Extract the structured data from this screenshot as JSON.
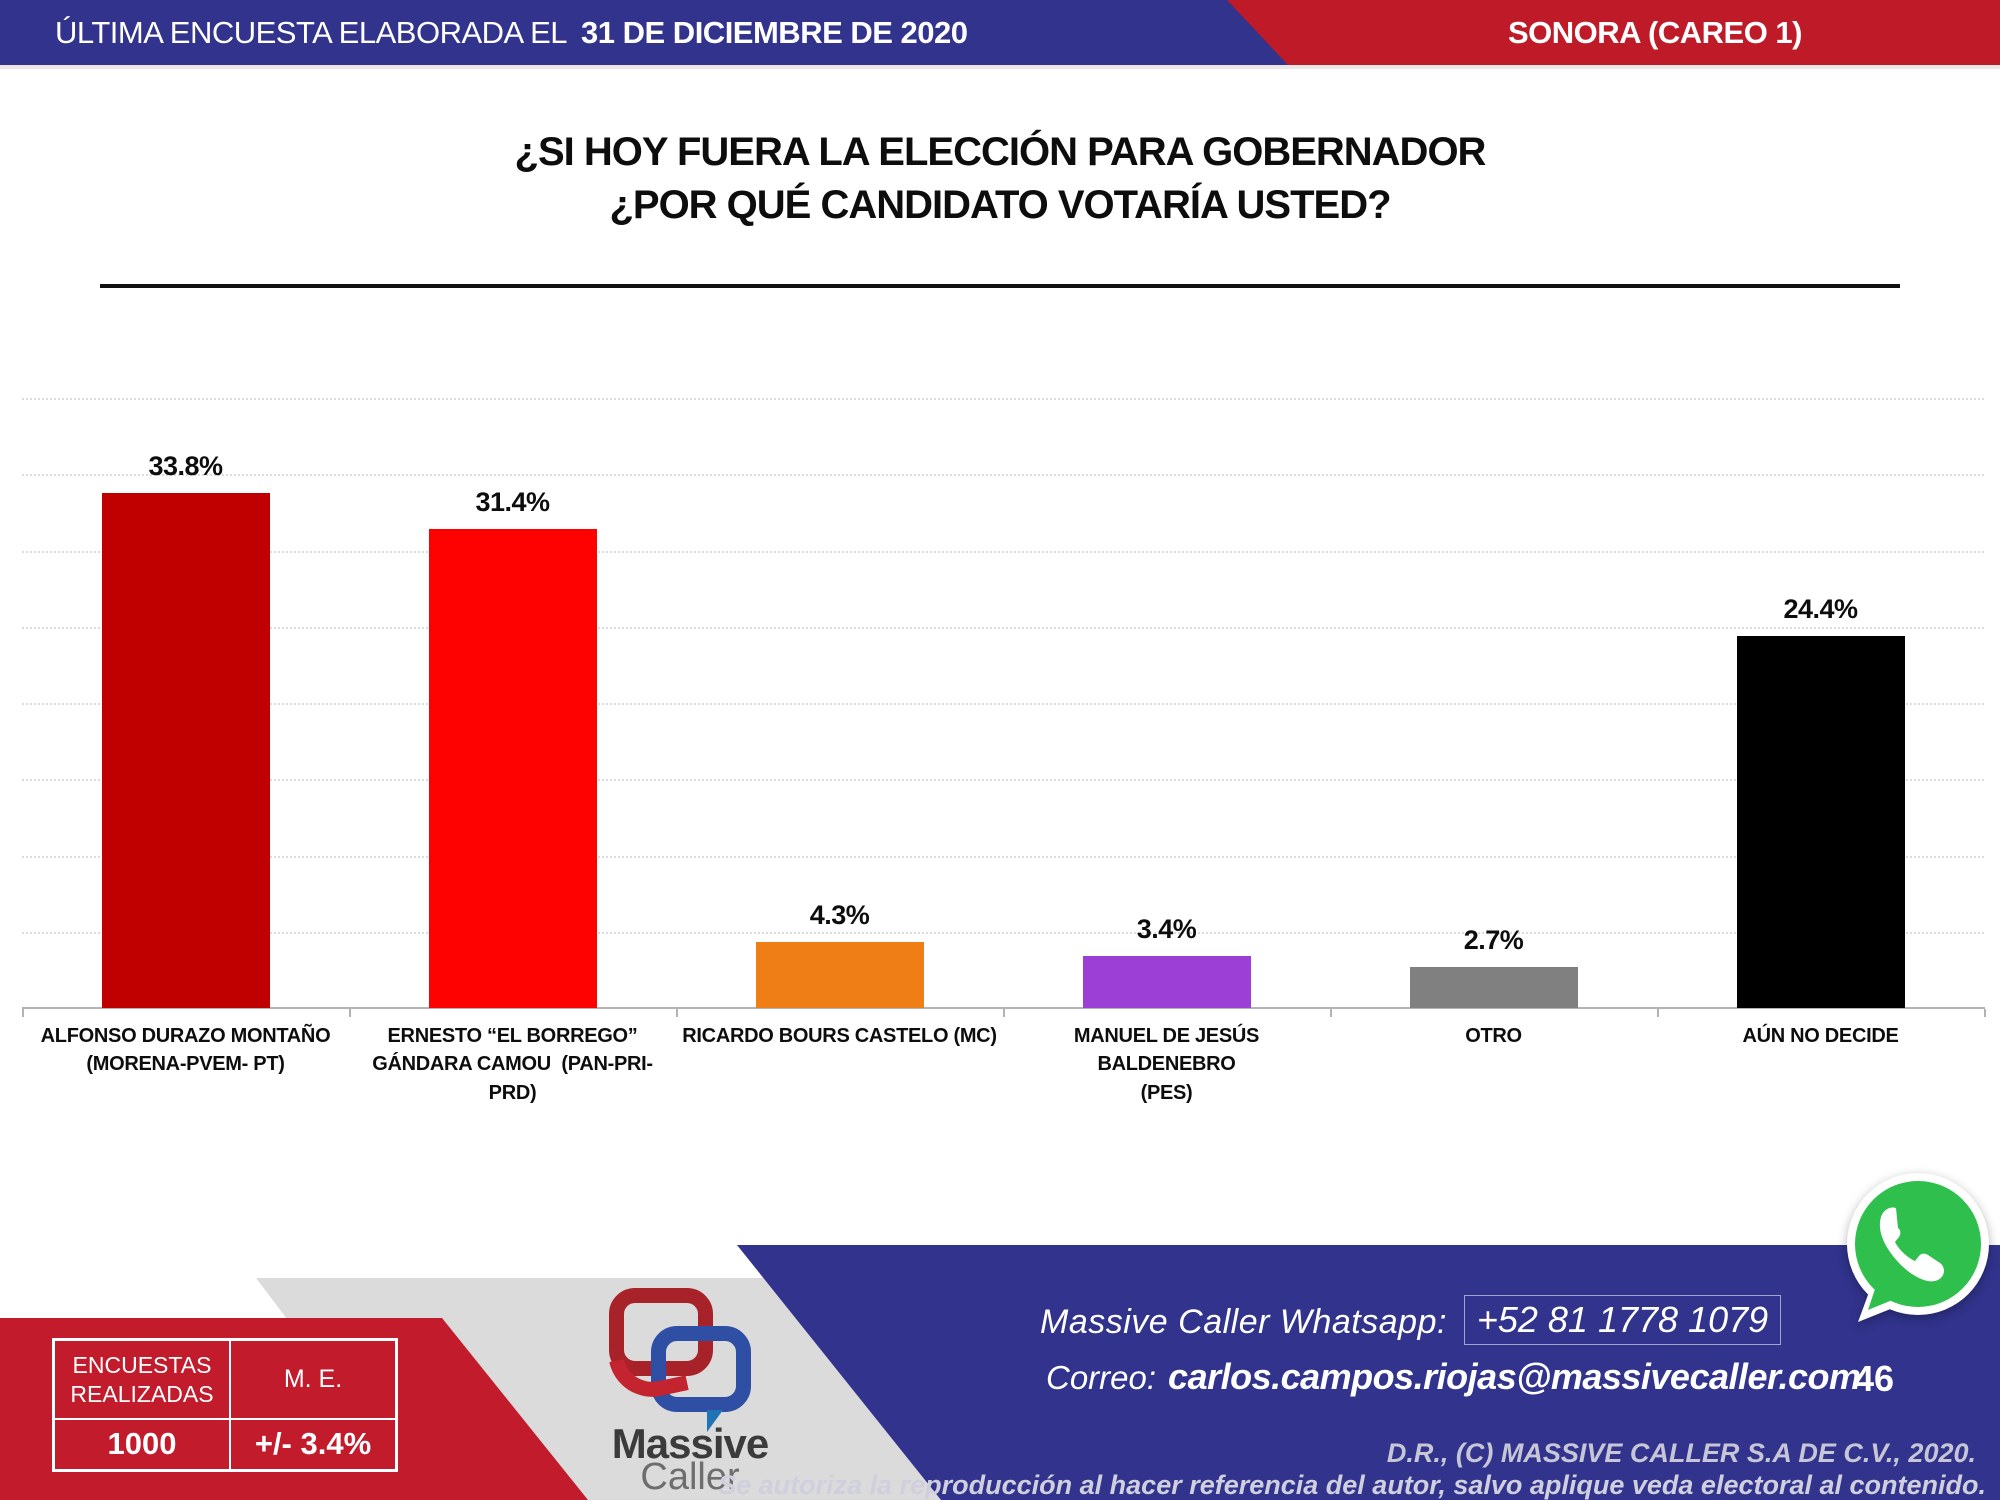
{
  "header": {
    "left_regular": "ÚLTIMA ENCUESTA ELABORADA EL",
    "left_bold": "31 DE DICIEMBRE DE 2020",
    "right": "SONORA (CAREO 1)",
    "blue_color": "#32338C",
    "red_color": "#BE1A28"
  },
  "title": {
    "lines": [
      "¿SI HOY FUERA LA ELECCIÓN PARA GOBERNADOR",
      "¿POR QUÉ CANDIDATO VOTARÍA USTED?"
    ]
  },
  "chart_data": {
    "type": "bar",
    "title": "¿SI HOY FUERA LA ELECCIÓN PARA GOBERNADOR ¿POR QUÉ CANDIDATO VOTARÍA USTED?",
    "xlabel": "",
    "ylabel": "",
    "categories": [
      [
        "ALFONSO DURAZO MONTAÑO",
        "(MORENA-PVEM- PT)"
      ],
      [
        "ERNESTO “EL BORREGO”",
        "GÁNDARA CAMOU  (PAN-PRI-",
        "PRD)"
      ],
      [
        "RICARDO BOURS CASTELO (MC)"
      ],
      [
        "MANUEL DE JESÚS BALDENEBRO",
        "(PES)"
      ],
      [
        "OTRO"
      ],
      [
        "AÚN NO DECIDE"
      ]
    ],
    "values": [
      33.8,
      31.4,
      4.3,
      3.4,
      2.7,
      24.4
    ],
    "value_labels": [
      "33.8%",
      "31.4%",
      "4.3%",
      "3.4%",
      "2.7%",
      "24.4%"
    ],
    "bar_colors": [
      "#C00000",
      "#FE0101",
      "#F07E16",
      "#9C3FD6",
      "#808080",
      "#000000"
    ],
    "ylim": [
      0,
      40
    ],
    "gridline_step_pct": 5,
    "grid": "horizontal dotted, light gray",
    "legend": "none"
  },
  "survey_info": {
    "col1_header": "ENCUESTAS\nREALIZADAS",
    "col2_header": "M. E.",
    "col1_value": "1000",
    "col2_value": "+/- 3.4%"
  },
  "logo": {
    "line1": "Massive",
    "line2": "Caller"
  },
  "footer": {
    "whatsapp_label": "Massive Caller Whatsapp:",
    "whatsapp_number": "+52 81 1778 1079",
    "email_label": "Correo:",
    "email": "carlos.campos.riojas@massivecaller.com",
    "page_number": "46",
    "copyright": "D.R., (C) MASSIVE CALLER S.A DE C.V., 2020.",
    "authorization": "Se autoriza la reproducción al hacer referencia del autor, salvo aplique veda electoral al contenido."
  },
  "icons": {
    "whatsapp": "whatsapp-icon",
    "colors": {
      "whatsapp_green_top": "#43D854",
      "whatsapp_green_bottom": "#20B038"
    }
  }
}
